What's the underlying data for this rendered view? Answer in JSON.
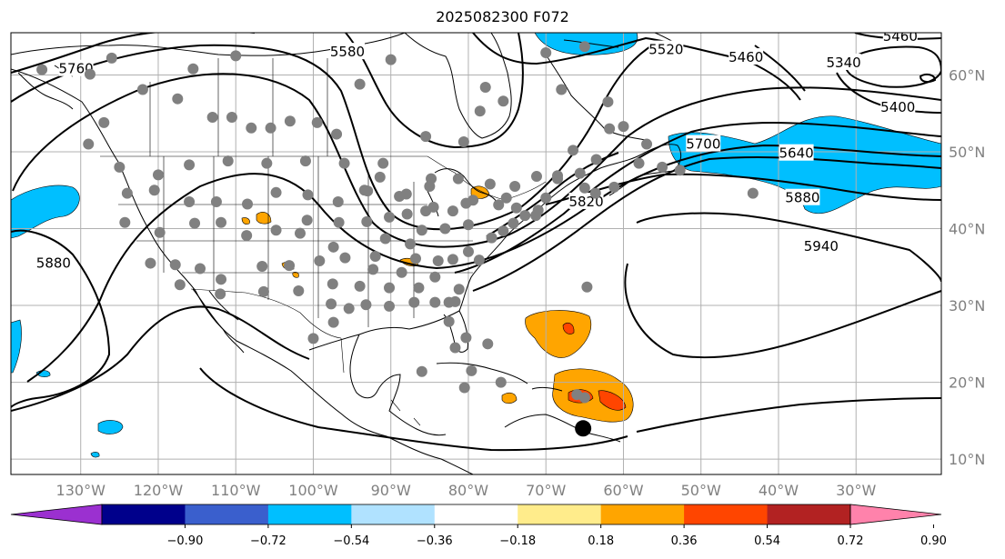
{
  "title": "2025082300 F072",
  "map": {
    "projection": "equirectangular",
    "lon_range": [
      -139,
      -19
    ],
    "lat_range": [
      8,
      65.5
    ],
    "grid": true,
    "lon_ticks": [
      {
        "value": -130,
        "label": "130°W"
      },
      {
        "value": -120,
        "label": "120°W"
      },
      {
        "value": -110,
        "label": "110°W"
      },
      {
        "value": -100,
        "label": "100°W"
      },
      {
        "value": -90,
        "label": "90°W"
      },
      {
        "value": -80,
        "label": "80°W"
      },
      {
        "value": -70,
        "label": "70°W"
      },
      {
        "value": -60,
        "label": "60°W"
      },
      {
        "value": -50,
        "label": "50°W"
      },
      {
        "value": -40,
        "label": "40°W"
      },
      {
        "value": -30,
        "label": "30°W"
      }
    ],
    "lat_ticks": [
      {
        "value": 60,
        "label": "60°N"
      },
      {
        "value": 50,
        "label": "50°N"
      },
      {
        "value": 40,
        "label": "40°N"
      },
      {
        "value": 30,
        "label": "30°N"
      },
      {
        "value": 20,
        "label": "20°N"
      },
      {
        "value": 10,
        "label": "10°N"
      }
    ],
    "contour_labels": [
      {
        "text": "5760",
        "lon": -130.6,
        "lat": 60.8
      },
      {
        "text": "5580",
        "lon": -95.6,
        "lat": 63.0
      },
      {
        "text": "5520",
        "lon": -54.5,
        "lat": 63.3
      },
      {
        "text": "5460",
        "lon": -44.2,
        "lat": 62.3
      },
      {
        "text": "5460",
        "lon": -24.3,
        "lat": 65.0
      },
      {
        "text": "5340",
        "lon": -31.6,
        "lat": 61.6
      },
      {
        "text": "5400",
        "lon": -24.6,
        "lat": 55.8
      },
      {
        "text": "5700",
        "lon": -49.7,
        "lat": 51.0
      },
      {
        "text": "5640",
        "lon": -37.7,
        "lat": 49.8
      },
      {
        "text": "5820",
        "lon": -64.8,
        "lat": 43.5
      },
      {
        "text": "5880",
        "lon": -36.9,
        "lat": 44.0
      },
      {
        "text": "5940",
        "lon": -34.5,
        "lat": 37.7
      },
      {
        "text": "5880",
        "lon": -133.5,
        "lat": 35.5
      }
    ],
    "stations_count_note": "",
    "marker": {
      "lon": -65.2,
      "lat": 14.0
    }
  },
  "colorbar": {
    "colors": [
      "#9b30d0",
      "#00008b",
      "#3a5fcd",
      "#00bfff",
      "#b0e2ff",
      "#ffffff",
      "#ffec8b",
      "#ffa500",
      "#ff4500",
      "#b22222",
      "#ff82ab"
    ],
    "ticks": [
      "−0.90",
      "−0.72",
      "−0.54",
      "−0.36",
      "−0.18",
      "0.18",
      "0.36",
      "0.54",
      "0.72",
      "0.90"
    ]
  }
}
